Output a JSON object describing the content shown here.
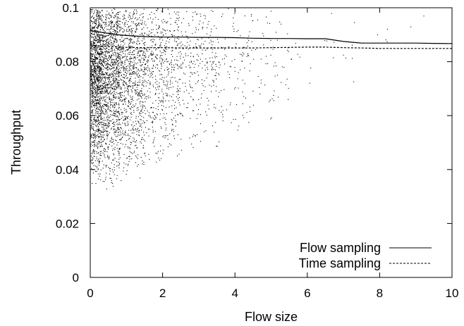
{
  "chart_data": {
    "type": "scatter",
    "title": "",
    "xlabel": "Flow size",
    "ylabel": "Throughput",
    "xlim": [
      0,
      10
    ],
    "ylim": [
      0,
      0.1
    ],
    "x_ticks": [
      0,
      2,
      4,
      6,
      8,
      10
    ],
    "x_tick_labels": [
      "0",
      "2",
      "4",
      "6",
      "8",
      "10"
    ],
    "y_ticks": [
      0,
      0.02,
      0.04,
      0.06,
      0.08,
      0.1
    ],
    "y_tick_labels": [
      "0",
      "0.02",
      "0.04",
      "0.06",
      "0.08",
      "0.1"
    ],
    "grid": false,
    "legend_position": "bottom-right",
    "series": [
      {
        "name": "Flow sampling",
        "type": "line",
        "line_style": "solid",
        "color": "#000000",
        "x": [
          0.0,
          0.25,
          0.5,
          0.75,
          1.0,
          1.5,
          2.0,
          2.5,
          3.0,
          3.5,
          4.0,
          4.5,
          5.0,
          5.5,
          6.0,
          6.5,
          7.0,
          7.5,
          8.0,
          8.5,
          9.0,
          9.5,
          10.0
        ],
        "y": [
          0.0915,
          0.091,
          0.0905,
          0.09,
          0.0897,
          0.0893,
          0.0891,
          0.0891,
          0.089,
          0.089,
          0.0889,
          0.0887,
          0.0886,
          0.0886,
          0.0885,
          0.0885,
          0.0875,
          0.0869,
          0.0869,
          0.0869,
          0.0869,
          0.0868,
          0.0867
        ]
      },
      {
        "name": "Time sampling",
        "type": "line",
        "line_style": "dashed",
        "color": "#000000",
        "x": [
          0.0,
          0.25,
          0.5,
          0.75,
          1.0,
          1.5,
          2.0,
          2.5,
          3.0,
          3.5,
          4.0,
          4.5,
          5.0,
          5.5,
          6.0,
          6.5,
          7.0,
          7.5,
          8.0,
          8.5,
          9.0,
          9.5,
          10.0
        ],
        "y": [
          0.0862,
          0.0858,
          0.0856,
          0.0855,
          0.0853,
          0.0852,
          0.0852,
          0.0851,
          0.0851,
          0.0851,
          0.0851,
          0.0851,
          0.0852,
          0.0853,
          0.0854,
          0.0854,
          0.0852,
          0.0851,
          0.0849,
          0.0849,
          0.0849,
          0.0849,
          0.0849
        ]
      },
      {
        "type": "scatter",
        "marker": "dot",
        "color": "#000000",
        "distribution": [
          {
            "x_range": [
              0.0,
              0.3
            ],
            "y_range": [
              0.033,
              0.1
            ],
            "count": 1100
          },
          {
            "x_range": [
              0.3,
              0.8
            ],
            "y_range": [
              0.031,
              0.1
            ],
            "count": 1100
          },
          {
            "x_range": [
              0.8,
              1.5
            ],
            "y_range": [
              0.035,
              0.1
            ],
            "count": 850
          },
          {
            "x_range": [
              1.5,
              2.5
            ],
            "y_range": [
              0.038,
              0.1
            ],
            "count": 520
          },
          {
            "x_range": [
              2.5,
              3.5
            ],
            "y_range": [
              0.042,
              0.1
            ],
            "count": 240
          },
          {
            "x_range": [
              3.5,
              4.5
            ],
            "y_range": [
              0.045,
              0.1
            ],
            "count": 110
          },
          {
            "x_range": [
              4.5,
              5.5
            ],
            "y_range": [
              0.047,
              0.1
            ],
            "count": 55
          },
          {
            "x_range": [
              5.5,
              7.5
            ],
            "y_range": [
              0.055,
              0.1
            ],
            "count": 18
          },
          {
            "x_range": [
              7.5,
              10.0
            ],
            "y_range": [
              0.082,
              0.1
            ],
            "count": 6
          }
        ]
      }
    ]
  }
}
